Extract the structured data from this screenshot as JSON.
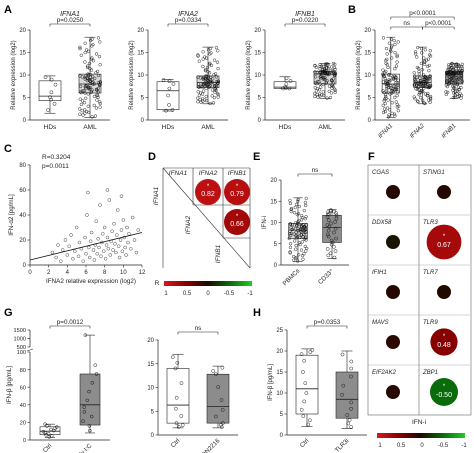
{
  "panel_letters": {
    "A": "A",
    "B": "B",
    "C": "C",
    "D": "D",
    "E": "E",
    "F": "F",
    "G": "G",
    "H": "H"
  },
  "chart_data": [
    {
      "id": "A1",
      "type": "box",
      "title": "IFNA1",
      "pvalue": "p=0.0250",
      "ylabel": "Relative expression (log2)",
      "ylim": [
        0,
        20
      ],
      "yticks": [
        0,
        5,
        10,
        15,
        20
      ],
      "categories": [
        "HDs",
        "AML"
      ],
      "boxes": [
        {
          "min": 1.5,
          "q1": 4.3,
          "median": 5.3,
          "q3": 8.7,
          "max": 9.8,
          "color": "#ffffff",
          "n": 8
        },
        {
          "min": 0.6,
          "q1": 6.0,
          "median": 8.0,
          "q3": 10.2,
          "max": 18.4,
          "color": "#d9d9d9",
          "n": 110
        }
      ]
    },
    {
      "id": "A2",
      "type": "box",
      "title": "IFNA2",
      "pvalue": "p=0.0334",
      "ylabel": "Relative expression (log2)",
      "ylim": [
        0,
        20
      ],
      "yticks": [
        0,
        5,
        10,
        15,
        20
      ],
      "categories": [
        "HDs",
        "AML"
      ],
      "boxes": [
        {
          "min": 2.0,
          "q1": 2.3,
          "median": 6.5,
          "q3": 8.5,
          "max": 9.0,
          "color": "#ffffff",
          "n": 8
        },
        {
          "min": 3.6,
          "q1": 7.2,
          "median": 8.3,
          "q3": 9.8,
          "max": 16.2,
          "color": "#d9d9d9",
          "n": 110
        }
      ]
    },
    {
      "id": "A3",
      "type": "box",
      "title": "IFNB1",
      "pvalue": "p=0.0220",
      "ylabel": "Relative expression (log2)",
      "ylim": [
        0,
        20
      ],
      "yticks": [
        0,
        5,
        10,
        15,
        20
      ],
      "categories": [
        "HDs",
        "AML"
      ],
      "boxes": [
        {
          "min": 7.0,
          "q1": 7.0,
          "median": 7.3,
          "q3": 8.5,
          "max": 9.6,
          "color": "#ffffff",
          "n": 7
        },
        {
          "min": 4.8,
          "q1": 8.0,
          "median": 10.2,
          "q3": 10.8,
          "max": 12.6,
          "color": "#d9d9d9",
          "n": 110
        }
      ]
    },
    {
      "id": "B",
      "type": "box",
      "pvalues": [
        "p<0.0001",
        "p<0.0001"
      ],
      "ns_label": "ns",
      "ylabel": "Relative expression (log2)",
      "ylim": [
        0,
        20
      ],
      "yticks": [
        0,
        5,
        10,
        15,
        20
      ],
      "categories": [
        "IFNA1",
        "IFNA2",
        "IFNB1"
      ],
      "boxes": [
        {
          "min": 0.6,
          "q1": 6.0,
          "median": 8.0,
          "q3": 10.2,
          "max": 18.4,
          "color": "#ffffff",
          "n": 110
        },
        {
          "min": 3.6,
          "q1": 7.2,
          "median": 8.3,
          "q3": 9.8,
          "max": 16.2,
          "color": "#d9d9d9",
          "n": 110
        },
        {
          "min": 4.8,
          "q1": 8.0,
          "median": 10.2,
          "q3": 10.8,
          "max": 12.6,
          "color": "#8c8c8c",
          "n": 110
        }
      ]
    },
    {
      "id": "C",
      "type": "scatter",
      "annotations": [
        "R=0.3204",
        "p=0.0011"
      ],
      "xlabel": "IFNA2 relative expression (log2)",
      "ylabel": "IFN-α2 [pg/mL]",
      "xlim": [
        0,
        12
      ],
      "ylim": [
        0,
        80
      ],
      "xticks": [
        0,
        2,
        4,
        6,
        8,
        10,
        12
      ],
      "yticks": [
        0,
        20,
        40,
        60,
        80
      ],
      "fit": {
        "x": [
          0,
          12
        ],
        "y": [
          4,
          26
        ]
      },
      "points": [
        [
          2.4,
          10
        ],
        [
          2.8,
          6
        ],
        [
          3.0,
          16
        ],
        [
          3.3,
          3
        ],
        [
          3.5,
          12
        ],
        [
          3.8,
          20
        ],
        [
          4.0,
          8
        ],
        [
          4.2,
          15
        ],
        [
          4.4,
          24
        ],
        [
          4.6,
          5
        ],
        [
          4.8,
          11
        ],
        [
          5.0,
          30
        ],
        [
          5.2,
          7
        ],
        [
          5.3,
          18
        ],
        [
          5.5,
          13
        ],
        [
          5.7,
          3
        ],
        [
          5.9,
          22
        ],
        [
          6.0,
          9
        ],
        [
          6.1,
          40
        ],
        [
          6.3,
          14
        ],
        [
          6.4,
          6
        ],
        [
          6.5,
          19
        ],
        [
          6.6,
          26
        ],
        [
          6.8,
          12
        ],
        [
          6.9,
          4
        ],
        [
          7.0,
          16
        ],
        [
          7.1,
          35
        ],
        [
          7.2,
          9
        ],
        [
          7.3,
          21
        ],
        [
          7.4,
          14
        ],
        [
          7.5,
          48
        ],
        [
          7.6,
          7
        ],
        [
          7.7,
          18
        ],
        [
          7.8,
          25
        ],
        [
          7.9,
          11
        ],
        [
          8.0,
          30
        ],
        [
          8.1,
          5
        ],
        [
          8.2,
          16
        ],
        [
          8.3,
          22
        ],
        [
          8.4,
          13
        ],
        [
          8.5,
          52
        ],
        [
          8.6,
          8
        ],
        [
          8.7,
          19
        ],
        [
          8.8,
          27
        ],
        [
          8.9,
          12
        ],
        [
          9.0,
          33
        ],
        [
          9.1,
          17
        ],
        [
          9.2,
          10
        ],
        [
          9.3,
          24
        ],
        [
          9.4,
          44
        ],
        [
          9.5,
          15
        ],
        [
          9.6,
          6
        ],
        [
          9.7,
          20
        ],
        [
          9.8,
          28
        ],
        [
          9.9,
          11
        ],
        [
          10.0,
          36
        ],
        [
          10.1,
          22
        ],
        [
          10.2,
          14
        ],
        [
          10.3,
          8
        ],
        [
          10.4,
          30
        ],
        [
          10.5,
          18
        ],
        [
          10.6,
          25
        ],
        [
          10.8,
          13
        ],
        [
          11.0,
          38
        ],
        [
          11.2,
          20
        ],
        [
          11.4,
          10
        ],
        [
          11.6,
          28
        ],
        [
          6.2,
          58
        ],
        [
          8.3,
          60
        ],
        [
          9.8,
          55
        ]
      ]
    },
    {
      "id": "D",
      "type": "heatmap",
      "labels": [
        "IFNA1",
        "IFNA2",
        "IFNB1"
      ],
      "cells": [
        {
          "row": 0,
          "col": 1,
          "value": 0.82,
          "label": "0.82",
          "star": "*"
        },
        {
          "row": 0,
          "col": 2,
          "value": 0.79,
          "label": "0.79",
          "star": "*"
        },
        {
          "row": 1,
          "col": 2,
          "value": 0.66,
          "label": "0.66",
          "star": "*"
        }
      ],
      "legend_title": "R",
      "legend_ticks": [
        "1",
        "0.5",
        "0",
        "-0.5",
        "-1"
      ]
    },
    {
      "id": "E",
      "type": "box",
      "ns_label": "ns",
      "ylabel": "IFN-i",
      "ylim": [
        0,
        20
      ],
      "yticks": [
        0,
        5,
        10,
        15,
        20
      ],
      "categories": [
        "PBMCs",
        "CD33⁺"
      ],
      "boxes": [
        {
          "min": 0.8,
          "q1": 6.2,
          "median": 8.2,
          "q3": 9.8,
          "max": 15.8,
          "color": "#d9d9d9",
          "n": 100
        },
        {
          "min": 1.5,
          "q1": 5.3,
          "median": 8.8,
          "q3": 11.7,
          "max": 13.0,
          "color": "#8c8c8c",
          "n": 30
        }
      ]
    },
    {
      "id": "F",
      "type": "heatmap",
      "column_title": "IFN-i",
      "cells": [
        {
          "gene": "CGAS",
          "value": 0.05,
          "label": "",
          "star": ""
        },
        {
          "gene": "STING1",
          "value": 0.05,
          "label": "",
          "star": ""
        },
        {
          "gene": "DDX58",
          "value": -0.05,
          "label": "",
          "star": ""
        },
        {
          "gene": "TLR3",
          "value": 0.67,
          "label": "0.67",
          "star": "*"
        },
        {
          "gene": "IFIH1",
          "value": 0.05,
          "label": "",
          "star": ""
        },
        {
          "gene": "TLR7",
          "value": 0.03,
          "label": "",
          "star": ""
        },
        {
          "gene": "MAVS",
          "value": 0.08,
          "label": "",
          "star": ""
        },
        {
          "gene": "TLR9",
          "value": 0.48,
          "label": "0.48",
          "star": "*"
        },
        {
          "gene": "EIF2AK2",
          "value": 0.06,
          "label": "",
          "star": ""
        },
        {
          "gene": "ZBP1",
          "value": -0.5,
          "label": "-0.50",
          "star": "*"
        }
      ],
      "legend_ticks": [
        "1",
        "0.5",
        "0",
        "-0.5",
        "-1"
      ]
    },
    {
      "id": "G1",
      "type": "box",
      "pvalue": "p=0.0012",
      "ylabel": "IFN-β [pg/mL]",
      "ylim": [
        0,
        1500
      ],
      "yticks": [
        0,
        20,
        40,
        60,
        80,
        100,
        500,
        1000,
        1500
      ],
      "categories": [
        "Ctrl",
        "Poly I:C"
      ],
      "boxes": [
        {
          "min": 3,
          "q1": 6,
          "median": 10,
          "q3": 15,
          "max": 18,
          "color": "#ffffff",
          "n": 12
        },
        {
          "min": 8,
          "q1": 17,
          "median": 40,
          "q3": 75,
          "max": 1200,
          "color": "#8c8c8c",
          "n": 12
        }
      ]
    },
    {
      "id": "G2",
      "type": "box",
      "ns_label": "ns",
      "ylabel": "",
      "ylim": [
        0,
        20
      ],
      "yticks": [
        0,
        5,
        10,
        15,
        20
      ],
      "categories": [
        "Ctrl",
        "ODN2216"
      ],
      "boxes": [
        {
          "min": 1.5,
          "q1": 2.5,
          "median": 6.3,
          "q3": 14.0,
          "max": 17.0,
          "color": "#ffffff",
          "n": 10
        },
        {
          "min": 1.5,
          "q1": 2.5,
          "median": 6.0,
          "q3": 12.8,
          "max": 14.5,
          "color": "#8c8c8c",
          "n": 10
        }
      ]
    },
    {
      "id": "H",
      "type": "box",
      "pvalue": "p=0.0353",
      "ylabel": "IFN-β [pg/mL]",
      "ylim": [
        0,
        25
      ],
      "yticks": [
        0,
        5,
        10,
        15,
        20,
        25
      ],
      "categories": [
        "Ctrl",
        "TLR3i"
      ],
      "boxes": [
        {
          "min": 2.0,
          "q1": 5.0,
          "median": 11.0,
          "q3": 19.0,
          "max": 20.5,
          "color": "#ffffff",
          "n": 12
        },
        {
          "min": 1.5,
          "q1": 4.0,
          "median": 8.5,
          "q3": 15.0,
          "max": 20.0,
          "color": "#8c8c8c",
          "n": 12
        }
      ]
    }
  ]
}
